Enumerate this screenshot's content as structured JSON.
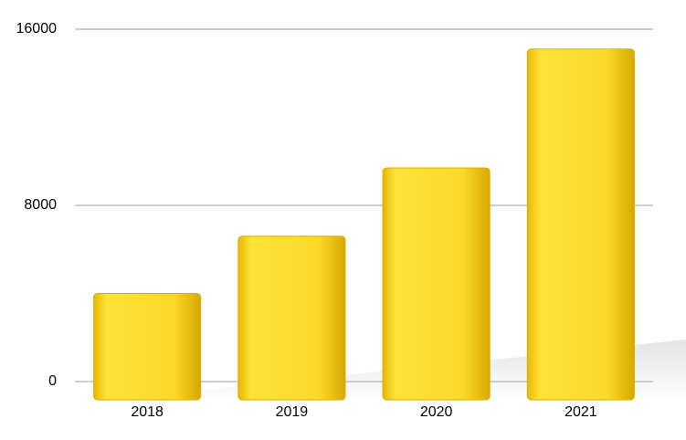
{
  "chart_data": {
    "type": "bar",
    "categories": [
      "2018",
      "2019",
      "2020",
      "2021"
    ],
    "values": [
      4000,
      6600,
      9700,
      15100
    ],
    "color": "#fbd92a",
    "ylim": [
      0,
      16000
    ],
    "yticks": [
      0,
      8000,
      16000
    ],
    "grid": true
  }
}
